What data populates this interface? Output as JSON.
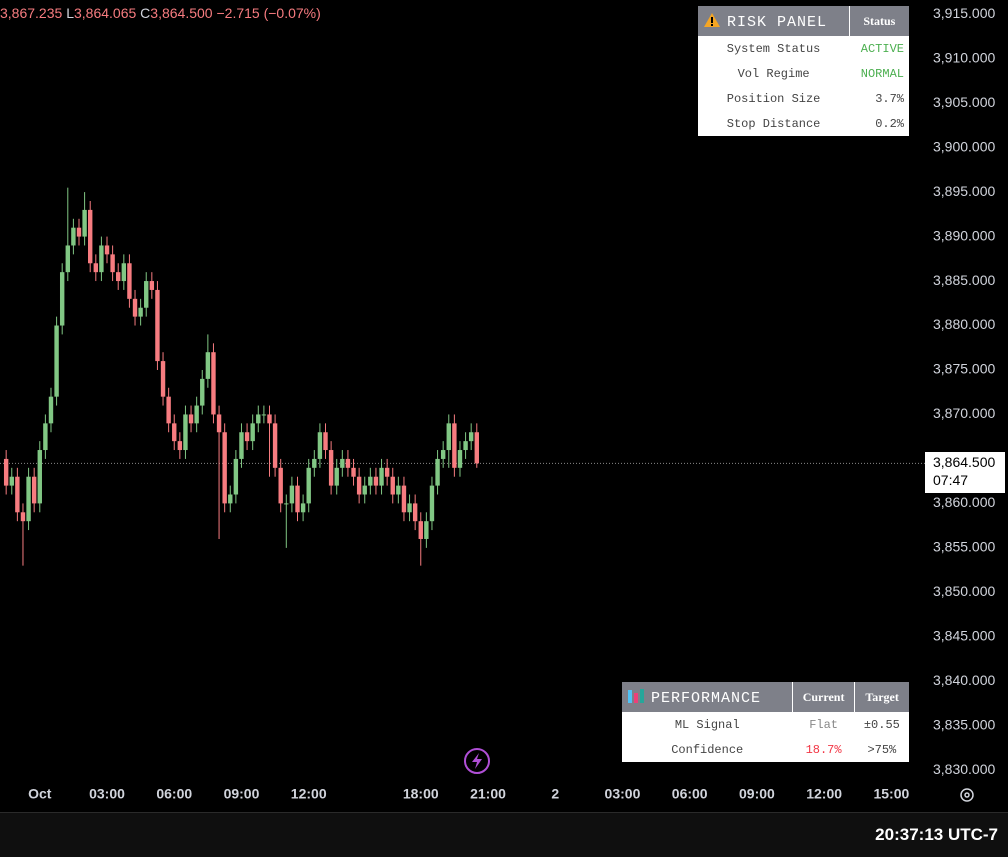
{
  "chart_data": {
    "type": "candlestick",
    "open": [
      3865,
      3862,
      3863,
      3859,
      3858,
      3863,
      3860,
      3866,
      3869,
      3872,
      3880,
      3886,
      3889,
      3891,
      3890,
      3893,
      3887,
      3886,
      3889,
      3888,
      3886,
      3885,
      3887,
      3883,
      3881,
      3882,
      3885,
      3884,
      3876,
      3872,
      3869,
      3867,
      3866,
      3870,
      3869,
      3871,
      3874,
      3877,
      3870,
      3868,
      3860,
      3861,
      3865,
      3868,
      3867,
      3869,
      3870,
      3870,
      3869,
      3864,
      3860,
      3860,
      3862,
      3859,
      3860,
      3864,
      3865,
      3868,
      3866,
      3862,
      3864,
      3865,
      3864,
      3863,
      3861,
      3862,
      3863,
      3862,
      3864,
      3863,
      3861,
      3862,
      3859,
      3860,
      3858,
      3856,
      3858,
      3862,
      3865,
      3866,
      3869,
      3864,
      3866,
      3867,
      3868
    ],
    "high": [
      3866,
      3864,
      3864,
      3860,
      3864,
      3864,
      3867,
      3870,
      3873,
      3881,
      3887,
      3895.5,
      3892,
      3892,
      3895,
      3894,
      3888,
      3890,
      3890,
      3889,
      3887,
      3888,
      3888,
      3884,
      3883,
      3886,
      3886,
      3885,
      3877,
      3873,
      3870,
      3868,
      3871,
      3871,
      3872,
      3875,
      3879,
      3878,
      3871,
      3869,
      3862,
      3866,
      3869,
      3869,
      3870,
      3871,
      3871,
      3871,
      3870,
      3865,
      3861,
      3863,
      3863,
      3861,
      3865,
      3866,
      3869,
      3869,
      3867,
      3865,
      3866,
      3866,
      3865,
      3864,
      3863,
      3864,
      3864,
      3865,
      3865,
      3864,
      3863,
      3863,
      3861,
      3861,
      3859,
      3859,
      3863,
      3866,
      3867,
      3870,
      3870,
      3867,
      3868,
      3869,
      3869
    ],
    "low": [
      3861,
      3861,
      3858,
      3853,
      3857,
      3859,
      3859,
      3865,
      3868,
      3871,
      3879,
      3885,
      3888,
      3889,
      3889,
      3886,
      3885,
      3885,
      3887,
      3885,
      3884,
      3884,
      3882,
      3880,
      3880,
      3881,
      3883,
      3875,
      3871,
      3868,
      3866,
      3865,
      3865,
      3868,
      3868,
      3870,
      3873,
      3869,
      3856,
      3859,
      3859,
      3860,
      3864,
      3866,
      3866,
      3868,
      3869,
      3863,
      3863,
      3859,
      3855,
      3859,
      3858,
      3858,
      3859,
      3863,
      3864,
      3865,
      3861,
      3861,
      3863,
      3863,
      3862,
      3860,
      3860,
      3861,
      3861,
      3861,
      3862,
      3860,
      3860,
      3858,
      3858,
      3857,
      3853,
      3855,
      3857,
      3861,
      3864,
      3864,
      3863,
      3863,
      3865,
      3866,
      3864
    ],
    "close": [
      3862,
      3863,
      3859,
      3858,
      3863,
      3860,
      3866,
      3869,
      3872,
      3880,
      3886,
      3889,
      3891,
      3890,
      3893,
      3887,
      3886,
      3889,
      3888,
      3886,
      3885,
      3887,
      3883,
      3881,
      3882,
      3885,
      3884,
      3876,
      3872,
      3869,
      3867,
      3866,
      3870,
      3869,
      3871,
      3874,
      3877,
      3870,
      3868,
      3860,
      3861,
      3865,
      3868,
      3867,
      3869,
      3870,
      3870,
      3869,
      3864,
      3860,
      3860,
      3862,
      3859,
      3860,
      3864,
      3865,
      3868,
      3866,
      3862,
      3864,
      3865,
      3864,
      3863,
      3861,
      3862,
      3863,
      3862,
      3864,
      3863,
      3861,
      3862,
      3859,
      3860,
      3858,
      3856,
      3858,
      3862,
      3865,
      3866,
      3869,
      3864,
      3866,
      3867,
      3868,
      3864.5
    ],
    "up_color": "#81c784",
    "down_color": "#f77c80",
    "xlim": [
      -1.1,
      164
    ],
    "xticks": [
      {
        "value": 6,
        "label": "Oct"
      },
      {
        "value": 18,
        "label": "03:00"
      },
      {
        "value": 30,
        "label": "06:00"
      },
      {
        "value": 42,
        "label": "09:00"
      },
      {
        "value": 54,
        "label": "12:00"
      },
      {
        "value": 74,
        "label": "18:00"
      },
      {
        "value": 86,
        "label": "21:00"
      },
      {
        "value": 98,
        "label": "2"
      },
      {
        "value": 110,
        "label": "03:00"
      },
      {
        "value": 122,
        "label": "06:00"
      },
      {
        "value": 134,
        "label": "09:00"
      },
      {
        "value": 146,
        "label": "12:00"
      },
      {
        "value": 158,
        "label": "15:00"
      }
    ],
    "ylim": [
      3828.9,
      3916.6
    ],
    "yticks": [
      {
        "value": 3915,
        "label": "3,915.000"
      },
      {
        "value": 3910,
        "label": "3,910.000"
      },
      {
        "value": 3905,
        "label": "3,905.000"
      },
      {
        "value": 3900,
        "label": "3,900.000"
      },
      {
        "value": 3895,
        "label": "3,895.000"
      },
      {
        "value": 3890,
        "label": "3,890.000"
      },
      {
        "value": 3885,
        "label": "3,885.000"
      },
      {
        "value": 3880,
        "label": "3,880.000"
      },
      {
        "value": 3875,
        "label": "3,875.000"
      },
      {
        "value": 3870,
        "label": "3,870.000"
      },
      {
        "value": 3865,
        "label": "3,865.000"
      },
      {
        "value": 3860,
        "label": "3,860.000"
      },
      {
        "value": 3855,
        "label": "3,855.000"
      },
      {
        "value": 3850,
        "label": "3,850.000"
      },
      {
        "value": 3845,
        "label": "3,845.000"
      },
      {
        "value": 3840,
        "label": "3,840.000"
      },
      {
        "value": 3835,
        "label": "3,835.000"
      },
      {
        "value": 3830,
        "label": "3,830.000"
      }
    ],
    "last_price": {
      "value": 3864.5,
      "label": "3,864.500"
    },
    "countdown": "07:47"
  },
  "legend": {
    "high": "3,867.235",
    "low_label": "L",
    "low": "3,864.065",
    "close_label": "C",
    "close": "3,864.500",
    "change": "−2.715 (−0.07%)"
  },
  "risk_panel": {
    "title": "RISK PANEL",
    "header": "Status",
    "rows": [
      [
        "System Status",
        "ACTIVE"
      ],
      [
        "Vol Regime",
        "NORMAL"
      ],
      [
        "Position Size",
        "3.7%"
      ],
      [
        "Stop Distance",
        "0.2%"
      ]
    ]
  },
  "performance_panel": {
    "title": "PERFORMANCE",
    "headers": [
      "Current",
      "Target"
    ],
    "rows": [
      [
        "ML Signal",
        "Flat",
        "±0.55"
      ],
      [
        "Confidence",
        "18.7%",
        ">75%"
      ]
    ]
  },
  "clock": "20:37:13 UTC-7"
}
